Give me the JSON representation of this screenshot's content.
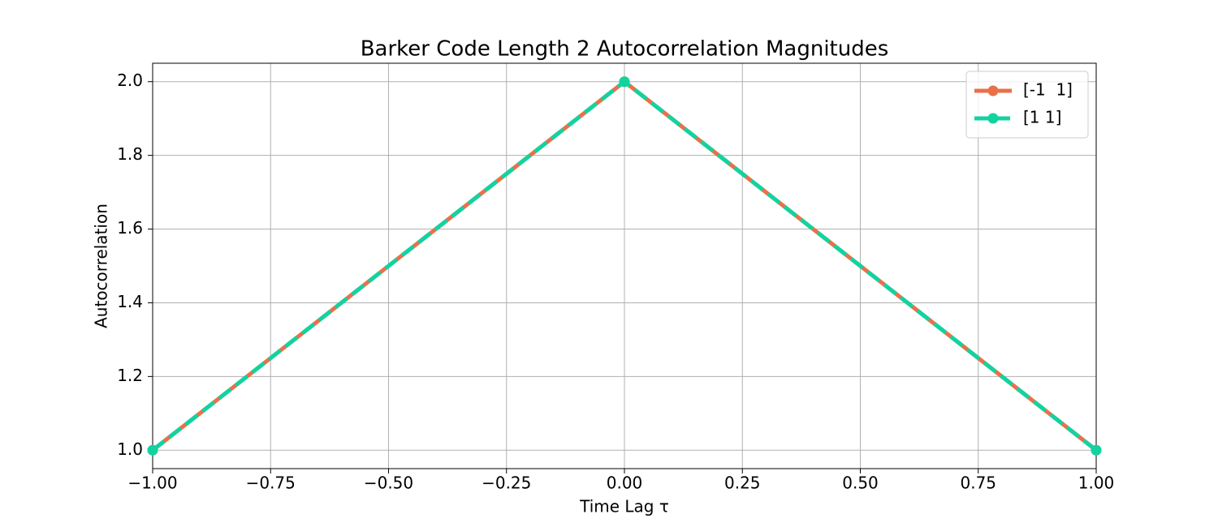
{
  "chart_data": {
    "type": "line",
    "title": "Barker Code Length 2 Autocorrelation Magnitudes",
    "x_label": "Time Lag τ",
    "y_label": "Autocorrelation",
    "x": [
      -1,
      0,
      1
    ],
    "series": [
      {
        "name": "[-1  1]",
        "color": "#e8714a",
        "values": [
          1,
          2,
          1
        ],
        "dashed": false
      },
      {
        "name": "[1 1]",
        "color": "#12d3a0",
        "values": [
          1,
          2,
          1
        ],
        "dashed": true
      }
    ],
    "xlim": [
      -1,
      1
    ],
    "ylim": [
      0.95,
      2.05
    ],
    "xticks": [
      {
        "value": -1,
        "label": "−1.00"
      },
      {
        "value": -0.75,
        "label": "−0.75"
      },
      {
        "value": -0.5,
        "label": "−0.50"
      },
      {
        "value": -0.25,
        "label": "−0.25"
      },
      {
        "value": 0,
        "label": "0.00"
      },
      {
        "value": 0.25,
        "label": "0.25"
      },
      {
        "value": 0.5,
        "label": "0.50"
      },
      {
        "value": 0.75,
        "label": "0.75"
      },
      {
        "value": 1,
        "label": "1.00"
      }
    ],
    "yticks": [
      {
        "value": 1,
        "label": "1.0"
      },
      1.2,
      1.4,
      1.6,
      1.8,
      {
        "value": 2,
        "label": "2.0"
      }
    ],
    "grid": true,
    "legend": "upper right"
  }
}
